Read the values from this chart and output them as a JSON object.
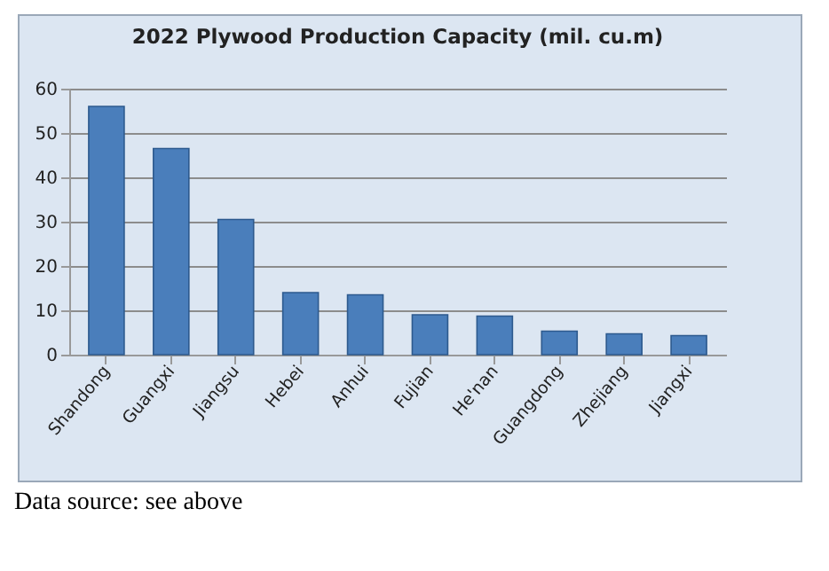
{
  "chart_data": {
    "type": "bar",
    "title": "2022 Plywood Production Capacity (mil. cu.m)",
    "categories": [
      "Shandong",
      "Guangxi",
      "Jiangsu",
      "Hebei",
      "Anhui",
      "Fujian",
      "He'nan",
      "Guangdong",
      "Zhejiang",
      "Jiangxi"
    ],
    "values": [
      56,
      46.5,
      30.5,
      14,
      13.5,
      9,
      8.7,
      5.3,
      4.7,
      4.3
    ],
    "color": "#4a7ebb",
    "ylim": [
      0,
      60
    ],
    "yticks": [
      0,
      10,
      20,
      30,
      40,
      50,
      60
    ],
    "grid": "y",
    "annotations": [
      "Data source: see above"
    ]
  }
}
